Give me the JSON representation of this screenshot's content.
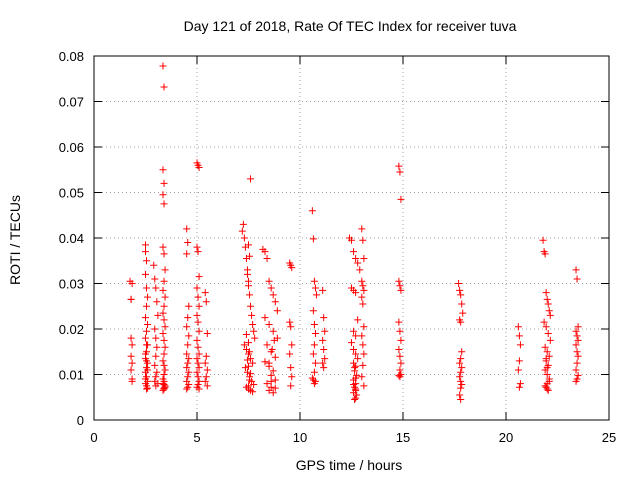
{
  "chart_data": {
    "type": "scatter",
    "title": "Day 121 of 2018, Rate Of TEC Index for receiver tuva",
    "xlabel": "GPS time / hours",
    "ylabel": "ROTI / TECUs",
    "xlim": [
      0,
      25
    ],
    "ylim": [
      0,
      0.08
    ],
    "xticks": [
      0,
      5,
      10,
      15,
      20,
      25
    ],
    "xtick_labels": [
      "0",
      "5",
      "10",
      "15",
      "20",
      "25"
    ],
    "yticks": [
      0,
      0.01,
      0.02,
      0.03,
      0.04,
      0.05,
      0.06,
      0.07,
      0.08
    ],
    "ytick_labels": [
      "0",
      "0.01",
      "0.02",
      "0.03",
      "0.04",
      "0.05",
      "0.06",
      "0.07",
      "0.08"
    ],
    "grid": true,
    "marker": "+",
    "color": "#ff0000",
    "series": [
      {
        "name": "ROTI",
        "x": [
          1.75,
          1.8,
          1.8,
          1.85,
          1.8,
          1.85,
          1.8,
          1.85,
          1.85,
          1.8,
          1.85,
          2.5,
          2.5,
          2.55,
          2.5,
          2.55,
          2.6,
          2.55,
          2.5,
          2.6,
          2.55,
          2.5,
          2.6,
          2.55,
          2.5,
          2.6,
          2.55,
          2.5,
          2.55,
          2.6,
          2.5,
          2.55,
          2.6,
          2.55,
          2.5,
          2.6,
          2.55,
          2.5,
          2.55,
          2.9,
          2.95,
          3.0,
          3.05,
          3.1,
          2.95,
          3.0,
          3.05,
          3.0,
          2.95,
          3.05,
          3.0,
          2.95,
          3.1,
          3.0,
          3.35,
          3.4,
          3.35,
          3.4,
          3.35,
          3.4,
          3.35,
          3.4,
          3.45,
          3.4,
          3.35,
          3.45,
          3.4,
          3.35,
          3.4,
          3.45,
          3.35,
          3.4,
          3.45,
          3.4,
          3.35,
          3.4,
          3.45,
          3.4,
          3.35,
          3.4,
          3.35,
          3.45,
          3.4,
          3.35,
          3.4,
          3.45,
          3.4,
          4.5,
          4.55,
          4.5,
          4.6,
          4.55,
          4.5,
          4.6,
          4.55,
          4.5,
          4.6,
          4.55,
          4.5,
          4.6,
          4.55,
          4.5,
          4.6,
          4.55,
          4.5,
          5.0,
          5.05,
          5.1,
          5.0,
          5.05,
          5.1,
          5.0,
          5.05,
          5.1,
          5.0,
          5.05,
          5.1,
          5.0,
          5.05,
          5.1,
          5.0,
          5.05,
          5.1,
          5.0,
          5.05,
          5.1,
          5.05,
          5.0,
          5.1,
          5.4,
          5.45,
          5.5,
          5.45,
          5.4,
          5.5,
          5.45,
          5.4,
          5.5,
          7.2,
          7.25,
          7.3,
          7.35,
          7.4,
          7.45,
          7.5,
          7.55,
          7.6,
          7.65,
          7.7,
          7.75,
          7.8,
          7.3,
          7.4,
          7.5,
          7.6,
          7.7,
          7.35,
          7.45,
          7.55,
          7.65,
          7.75,
          7.4,
          7.5,
          7.6,
          7.7,
          7.5,
          7.55,
          7.6,
          7.5,
          7.45,
          7.55,
          7.5,
          7.4,
          7.6,
          7.5,
          7.55,
          7.45,
          7.5,
          8.2,
          8.3,
          8.4,
          8.5,
          8.6,
          8.7,
          8.8,
          8.9,
          8.3,
          8.5,
          8.7,
          8.9,
          8.4,
          8.6,
          8.8,
          8.3,
          8.5,
          8.7,
          8.6,
          8.8,
          8.4,
          8.6,
          8.5,
          8.7,
          8.8,
          8.6,
          8.5,
          8.65,
          8.75,
          9.5,
          9.55,
          9.6,
          9.5,
          9.55,
          9.6,
          9.5,
          9.55,
          9.6,
          9.55,
          10.6,
          10.65,
          10.7,
          10.75,
          10.8,
          10.65,
          10.7,
          10.75,
          10.7,
          10.65,
          10.75,
          10.7,
          10.6,
          10.75,
          10.7,
          10.65,
          11.1,
          11.15,
          11.2,
          11.1,
          11.15,
          11.2,
          11.1,
          11.15,
          12.4,
          12.5,
          12.6,
          12.7,
          12.8,
          12.9,
          12.5,
          12.6,
          12.7,
          12.8,
          12.6,
          12.7,
          12.5,
          12.6,
          12.7,
          12.8,
          12.6,
          12.7,
          12.65,
          12.75,
          12.6,
          12.7,
          12.65,
          12.7,
          12.6,
          12.75,
          12.7,
          12.65,
          12.7,
          12.6,
          12.7,
          12.65,
          13.0,
          13.05,
          13.1,
          13.0,
          13.05,
          13.1,
          13.0,
          13.05,
          13.1,
          13.0,
          13.05,
          13.1,
          13.05,
          13.0,
          13.1,
          14.8,
          14.85,
          14.9,
          14.8,
          14.85,
          14.9,
          14.8,
          14.85,
          14.9,
          14.8,
          14.85,
          14.9,
          14.85,
          14.8,
          14.85,
          14.9,
          17.7,
          17.75,
          17.8,
          17.85,
          17.9,
          17.75,
          17.8,
          17.85,
          17.8,
          17.75,
          17.85,
          17.8,
          17.75,
          17.8,
          17.85,
          17.8,
          17.75,
          17.8,
          20.6,
          20.65,
          20.7,
          20.65,
          20.6,
          20.7,
          20.65,
          21.8,
          21.85,
          21.9,
          21.95,
          22.0,
          22.05,
          22.1,
          22.15,
          21.85,
          21.95,
          22.05,
          22.15,
          21.9,
          22.0,
          22.1,
          21.95,
          22.05,
          21.9,
          22.0,
          22.1,
          22.0,
          21.95,
          22.05,
          22.0,
          21.9,
          22.1,
          22.0,
          21.95,
          23.4,
          23.45,
          23.5,
          23.4,
          23.45,
          23.5,
          23.4,
          23.45,
          23.5,
          23.45,
          23.4,
          23.5,
          23.45,
          23.4
        ],
        "y": [
          0.0305,
          0.0265,
          0.018,
          0.0165,
          0.014,
          0.0125,
          0.011,
          0.009,
          0.0085,
          0.0265,
          0.03,
          0.0385,
          0.037,
          0.035,
          0.032,
          0.029,
          0.027,
          0.025,
          0.0225,
          0.021,
          0.0195,
          0.018,
          0.0165,
          0.015,
          0.0135,
          0.0125,
          0.0115,
          0.0105,
          0.0095,
          0.0085,
          0.008,
          0.0075,
          0.007,
          0.0068,
          0.009,
          0.011,
          0.013,
          0.0145,
          0.0165,
          0.034,
          0.031,
          0.029,
          0.026,
          0.023,
          0.02,
          0.018,
          0.016,
          0.014,
          0.012,
          0.0105,
          0.0095,
          0.0085,
          0.008,
          0.0075,
          0.0778,
          0.0732,
          0.055,
          0.052,
          0.0495,
          0.0475,
          0.038,
          0.0365,
          0.033,
          0.0305,
          0.0285,
          0.027,
          0.025,
          0.0235,
          0.022,
          0.0205,
          0.019,
          0.0175,
          0.016,
          0.0145,
          0.013,
          0.012,
          0.011,
          0.01,
          0.009,
          0.0085,
          0.008,
          0.0075,
          0.007,
          0.0065,
          0.0068,
          0.0072,
          0.0078,
          0.042,
          0.039,
          0.0365,
          0.025,
          0.0225,
          0.0205,
          0.0185,
          0.0165,
          0.0145,
          0.0135,
          0.0125,
          0.0115,
          0.0105,
          0.0095,
          0.0085,
          0.0078,
          0.0072,
          0.0068,
          0.0565,
          0.056,
          0.0555,
          0.038,
          0.037,
          0.0315,
          0.029,
          0.027,
          0.025,
          0.023,
          0.0215,
          0.0195,
          0.0175,
          0.016,
          0.0145,
          0.0135,
          0.0125,
          0.0115,
          0.0105,
          0.0095,
          0.0085,
          0.0078,
          0.0072,
          0.0068,
          0.028,
          0.026,
          0.019,
          0.014,
          0.0125,
          0.011,
          0.0095,
          0.0085,
          0.0075,
          0.0415,
          0.043,
          0.04,
          0.038,
          0.0355,
          0.032,
          0.0295,
          0.0275,
          0.025,
          0.023,
          0.021,
          0.0195,
          0.018,
          0.0165,
          0.0155,
          0.0145,
          0.0135,
          0.0125,
          0.0115,
          0.0105,
          0.0095,
          0.0085,
          0.0078,
          0.0072,
          0.0068,
          0.0065,
          0.0062,
          0.0075,
          0.0088,
          0.0102,
          0.0118,
          0.0132,
          0.015,
          0.017,
          0.0188,
          0.053,
          0.0385,
          0.036,
          0.033,
          0.0305,
          0.0375,
          0.037,
          0.0355,
          0.0305,
          0.029,
          0.0275,
          0.026,
          0.024,
          0.0225,
          0.021,
          0.0195,
          0.018,
          0.0165,
          0.015,
          0.0138,
          0.0128,
          0.0118,
          0.0108,
          0.0098,
          0.0088,
          0.008,
          0.0072,
          0.0065,
          0.006,
          0.007,
          0.0085,
          0.0125,
          0.0155,
          0.0175,
          0.0345,
          0.034,
          0.0335,
          0.0215,
          0.0205,
          0.0165,
          0.0145,
          0.0115,
          0.0095,
          0.0075,
          0.046,
          0.0398,
          0.0305,
          0.029,
          0.0275,
          0.024,
          0.021,
          0.019,
          0.0165,
          0.0145,
          0.0125,
          0.0105,
          0.0092,
          0.0085,
          0.008,
          0.0088,
          0.0285,
          0.0225,
          0.0195,
          0.0175,
          0.0155,
          0.0135,
          0.0125,
          0.0115,
          0.04,
          0.0395,
          0.037,
          0.0355,
          0.0345,
          0.033,
          0.029,
          0.0285,
          0.028,
          0.022,
          0.0195,
          0.0185,
          0.017,
          0.0155,
          0.0145,
          0.0135,
          0.0125,
          0.0118,
          0.0108,
          0.0098,
          0.0088,
          0.008,
          0.0072,
          0.0065,
          0.006,
          0.0055,
          0.0048,
          0.0045,
          0.0068,
          0.0078,
          0.0092,
          0.0115,
          0.042,
          0.0395,
          0.0355,
          0.0305,
          0.0295,
          0.0285,
          0.027,
          0.0255,
          0.0205,
          0.0185,
          0.0165,
          0.0145,
          0.012,
          0.0095,
          0.0075,
          0.0558,
          0.0545,
          0.0485,
          0.0305,
          0.0295,
          0.0285,
          0.0215,
          0.0195,
          0.0175,
          0.0155,
          0.014,
          0.0125,
          0.011,
          0.0098,
          0.0095,
          0.01,
          0.03,
          0.0285,
          0.0275,
          0.0255,
          0.0235,
          0.022,
          0.0215,
          0.015,
          0.0135,
          0.0125,
          0.0115,
          0.0105,
          0.0095,
          0.0085,
          0.0078,
          0.007,
          0.0055,
          0.0045,
          0.0205,
          0.0185,
          0.0165,
          0.013,
          0.011,
          0.008,
          0.0072,
          0.0395,
          0.037,
          0.0365,
          0.028,
          0.0265,
          0.0255,
          0.024,
          0.023,
          0.0215,
          0.0205,
          0.019,
          0.0175,
          0.016,
          0.015,
          0.014,
          0.013,
          0.012,
          0.011,
          0.01,
          0.009,
          0.008,
          0.0072,
          0.0065,
          0.0068,
          0.0075,
          0.0085,
          0.0115,
          0.0135,
          0.033,
          0.031,
          0.0205,
          0.0195,
          0.0185,
          0.0175,
          0.0165,
          0.015,
          0.014,
          0.0125,
          0.011,
          0.0098,
          0.009,
          0.0085
        ]
      }
    ]
  }
}
